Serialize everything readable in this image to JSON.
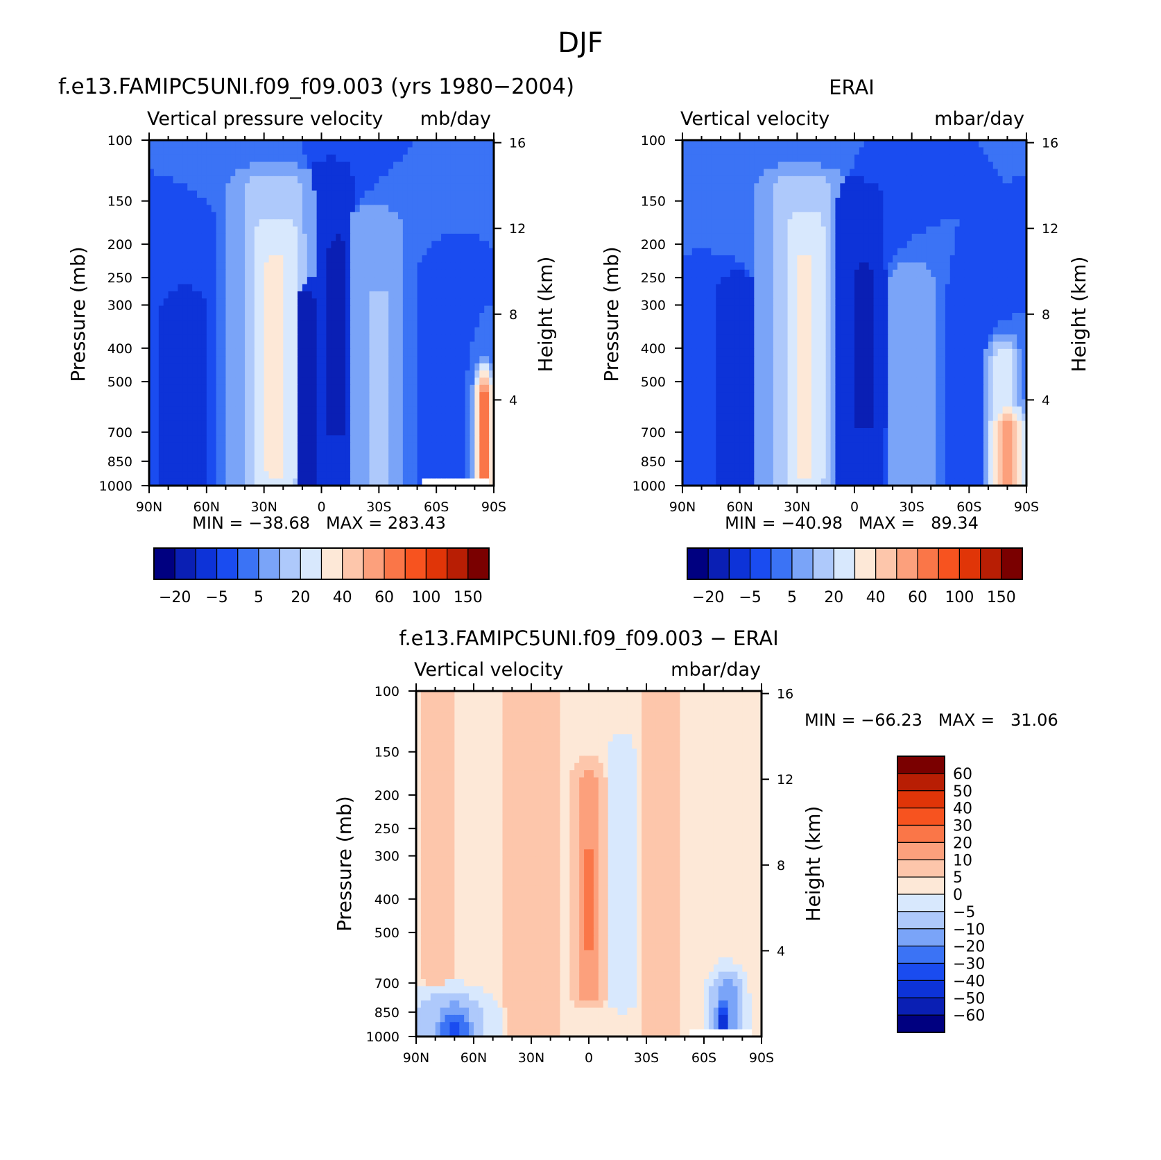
{
  "figure_title": "DJF",
  "colors": {
    "cmap_main": [
      "#000080",
      "#0a1fb4",
      "#0d33d8",
      "#1a4cf0",
      "#3b73f5",
      "#7aa4f8",
      "#aec9fb",
      "#d8e8fd",
      "#fde8d7",
      "#fdc6ab",
      "#fca07c",
      "#fa7648",
      "#f7531f",
      "#e03508",
      "#b81e04",
      "#7a0000"
    ],
    "cmap_diff": [
      "#000080",
      "#0a1fb4",
      "#0d33d8",
      "#1a4cf0",
      "#3b73f5",
      "#7aa4f8",
      "#aec9fb",
      "#d8e8fd",
      "#fde8d7",
      "#fdc6ab",
      "#fca07c",
      "#fa7648",
      "#f7531f",
      "#e03508",
      "#b81e04",
      "#7a0000"
    ],
    "background_fill": "#2a5cf0",
    "missing_fill": "#ffffff"
  },
  "chart_data": [
    {
      "id": "model",
      "type": "heatmap",
      "title": "f.e13.FAMIPC5UNI.f09_f09.003 (yrs 1980−2004)",
      "left_label": "Vertical pressure velocity",
      "right_label": "mb/day",
      "ylabel": "Pressure (mb)",
      "y2label": "Height (km)",
      "x_ticks": [
        "90N",
        "60N",
        "30N",
        "0",
        "30S",
        "60S",
        "90S"
      ],
      "x_range": [
        90,
        -90
      ],
      "y_ticks": [
        100,
        150,
        200,
        250,
        300,
        400,
        500,
        700,
        850,
        1000
      ],
      "y_range": [
        100,
        1000
      ],
      "y_scale": "log",
      "y2_ticks": [
        16,
        12,
        8,
        4
      ],
      "stats": "MIN = −38.68   MAX = 283.43",
      "contour_levels": [
        -25,
        -20,
        -10,
        -5,
        0,
        5,
        10,
        20,
        30,
        40,
        50,
        60,
        80,
        100,
        125,
        150
      ],
      "colorbar_labels": [
        "−20",
        "−5",
        "5",
        "20",
        "40",
        "60",
        "100",
        "150"
      ],
      "features": [
        {
          "lat": 72,
          "p_top": 320,
          "p_bot": 1000,
          "width": 12,
          "value": -20
        },
        {
          "lat": 66,
          "p_top": 180,
          "p_bot": 1000,
          "width": 16,
          "value": -10
        },
        {
          "lat": 25,
          "p_top": 140,
          "p_bot": 980,
          "width": 24,
          "value": 10
        },
        {
          "lat": 24,
          "p_top": 190,
          "p_bot": 950,
          "width": 16,
          "value": 20
        },
        {
          "lat": 24,
          "p_top": 240,
          "p_bot": 900,
          "width": 9,
          "value": 30
        },
        {
          "lat": 8,
          "p_top": 300,
          "p_bot": 1000,
          "width": 10,
          "value": -25
        },
        {
          "lat": -5,
          "p_top": 130,
          "p_bot": 1000,
          "width": 14,
          "value": -15
        },
        {
          "lat": -8,
          "p_top": 210,
          "p_bot": 700,
          "width": 8,
          "value": -25
        },
        {
          "lat": -27,
          "p_top": 180,
          "p_bot": 980,
          "width": 18,
          "value": 5
        },
        {
          "lat": -30,
          "p_top": 300,
          "p_bot": 960,
          "width": 8,
          "value": 10
        },
        {
          "lat": -58,
          "p_top": 260,
          "p_bot": 1000,
          "width": 10,
          "value": -10
        },
        {
          "lat": -85,
          "p_top": 550,
          "p_bot": 1000,
          "width": 4,
          "value": 60
        }
      ],
      "base_value": -5,
      "missing": {
        "lat_from": -52,
        "lat_to": -88,
        "p_from": 960
      }
    },
    {
      "id": "obs",
      "type": "heatmap",
      "title": "ERAI",
      "left_label": "Vertical velocity",
      "right_label": "mbar/day",
      "ylabel": "Pressure (mb)",
      "y2label": "Height (km)",
      "x_ticks": [
        "90N",
        "60N",
        "30N",
        "0",
        "30S",
        "60S",
        "90S"
      ],
      "x_range": [
        90,
        -90
      ],
      "y_ticks": [
        100,
        150,
        200,
        250,
        300,
        400,
        500,
        700,
        850,
        1000
      ],
      "y_range": [
        100,
        1000
      ],
      "y_scale": "log",
      "y2_ticks": [
        16,
        12,
        8,
        4
      ],
      "stats": "MIN = −40.98   MAX =   89.34",
      "contour_levels": [
        -25,
        -20,
        -10,
        -5,
        0,
        5,
        10,
        20,
        30,
        40,
        50,
        60,
        80,
        100,
        125,
        150
      ],
      "colorbar_labels": [
        "−20",
        "−5",
        "5",
        "20",
        "40",
        "60",
        "100",
        "150"
      ],
      "features": [
        {
          "lat": 62,
          "p_top": 280,
          "p_bot": 1000,
          "width": 14,
          "value": -15
        },
        {
          "lat": 28,
          "p_top": 140,
          "p_bot": 980,
          "width": 24,
          "value": 10
        },
        {
          "lat": 26,
          "p_top": 180,
          "p_bot": 950,
          "width": 14,
          "value": 20
        },
        {
          "lat": 26,
          "p_top": 240,
          "p_bot": 900,
          "width": 8,
          "value": 30
        },
        {
          "lat": 0,
          "p_top": 150,
          "p_bot": 1000,
          "width": 18,
          "value": -15
        },
        {
          "lat": -5,
          "p_top": 250,
          "p_bot": 650,
          "width": 10,
          "value": -25
        },
        {
          "lat": -30,
          "p_top": 260,
          "p_bot": 980,
          "width": 14,
          "value": 5
        },
        {
          "lat": -62,
          "p_top": 280,
          "p_bot": 1000,
          "width": 14,
          "value": -10
        },
        {
          "lat": -78,
          "p_top": 450,
          "p_bot": 1000,
          "width": 8,
          "value": 20
        },
        {
          "lat": -80,
          "p_top": 700,
          "p_bot": 1000,
          "width": 8,
          "value": 50
        }
      ],
      "base_value": -5
    },
    {
      "id": "diff",
      "type": "heatmap",
      "title": "f.e13.FAMIPC5UNI.f09_f09.003 − ERAI",
      "left_label": "Vertical velocity",
      "right_label": "mbar/day",
      "ylabel": "Pressure (mb)",
      "y2label": "Height (km)",
      "x_ticks": [
        "90N",
        "60N",
        "30N",
        "0",
        "30S",
        "60S",
        "90S"
      ],
      "x_range": [
        90,
        -90
      ],
      "y_ticks": [
        100,
        150,
        200,
        250,
        300,
        400,
        500,
        700,
        850,
        1000
      ],
      "y_range": [
        100,
        1000
      ],
      "y_scale": "log",
      "y2_ticks": [
        16,
        12,
        8,
        4
      ],
      "stats": "MIN = −66.23   MAX =   31.06",
      "contour_levels": [
        -70,
        -60,
        -50,
        -40,
        -30,
        -20,
        -10,
        -5,
        0,
        5,
        10,
        20,
        30,
        40,
        50,
        60,
        70
      ],
      "colorbar_labels": [
        "60",
        "50",
        "40",
        "30",
        "20",
        "10",
        "5",
        "0",
        "−5",
        "−10",
        "−20",
        "−30",
        "−40",
        "−50",
        "−60"
      ],
      "features": [
        {
          "lat": 78,
          "p_top": 100,
          "p_bot": 1000,
          "width": 10,
          "value": 2
        },
        {
          "lat": 58,
          "p_top": 100,
          "p_bot": 1000,
          "width": 10,
          "value": -2
        },
        {
          "lat": 30,
          "p_top": 100,
          "p_bot": 1000,
          "width": 18,
          "value": 2
        },
        {
          "lat": 0,
          "p_top": 190,
          "p_bot": 760,
          "width": 8,
          "value": 8
        },
        {
          "lat": 0,
          "p_top": 300,
          "p_bot": 560,
          "width": 5,
          "value": 12
        },
        {
          "lat": -17,
          "p_top": 150,
          "p_bot": 800,
          "width": 10,
          "value": -7
        },
        {
          "lat": -38,
          "p_top": 100,
          "p_bot": 1000,
          "width": 12,
          "value": 2
        },
        {
          "lat": 72,
          "p_top": 880,
          "p_bot": 1000,
          "width": 20,
          "value": -20
        },
        {
          "lat": 70,
          "p_top": 950,
          "p_bot": 1000,
          "width": 10,
          "value": -45
        },
        {
          "lat": -72,
          "p_top": 780,
          "p_bot": 1000,
          "width": 8,
          "value": -30
        },
        {
          "lat": -70,
          "p_top": 900,
          "p_bot": 1000,
          "width": 4,
          "value": -60
        }
      ],
      "base_value": -2,
      "missing": {
        "lat_from": -52,
        "lat_to": -84,
        "p_from": 960
      }
    }
  ]
}
